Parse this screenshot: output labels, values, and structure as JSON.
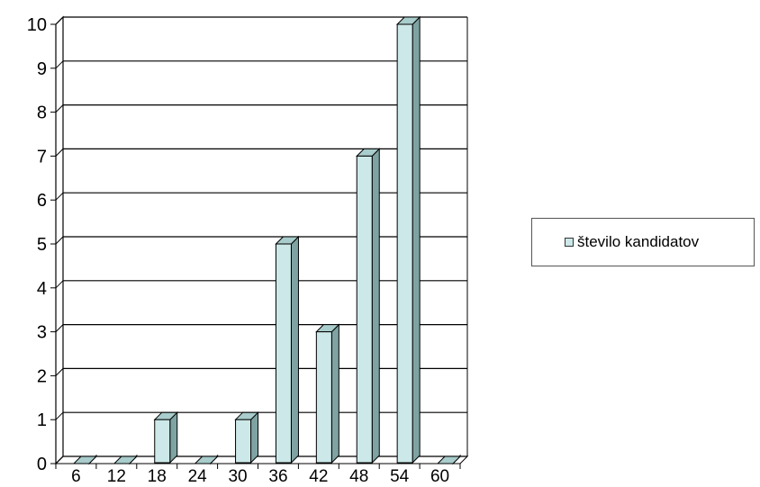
{
  "chart_data": {
    "type": "bar",
    "categories": [
      "6",
      "12",
      "18",
      "24",
      "30",
      "36",
      "42",
      "48",
      "54",
      "60"
    ],
    "series": [
      {
        "name": "število kandidatov",
        "values": [
          0,
          0,
          1,
          0,
          1,
          5,
          3,
          7,
          10,
          0
        ]
      }
    ],
    "yticks": [
      "0",
      "1",
      "2",
      "3",
      "4",
      "5",
      "6",
      "7",
      "8",
      "9",
      "10"
    ],
    "ylim": [
      0,
      10
    ],
    "grid": true,
    "legend_position": "right",
    "colors": {
      "bar_face": "#cce8e8",
      "bar_side": "#7fa3a3",
      "bar_top": "#a9cccc",
      "grid": "#000000"
    }
  }
}
